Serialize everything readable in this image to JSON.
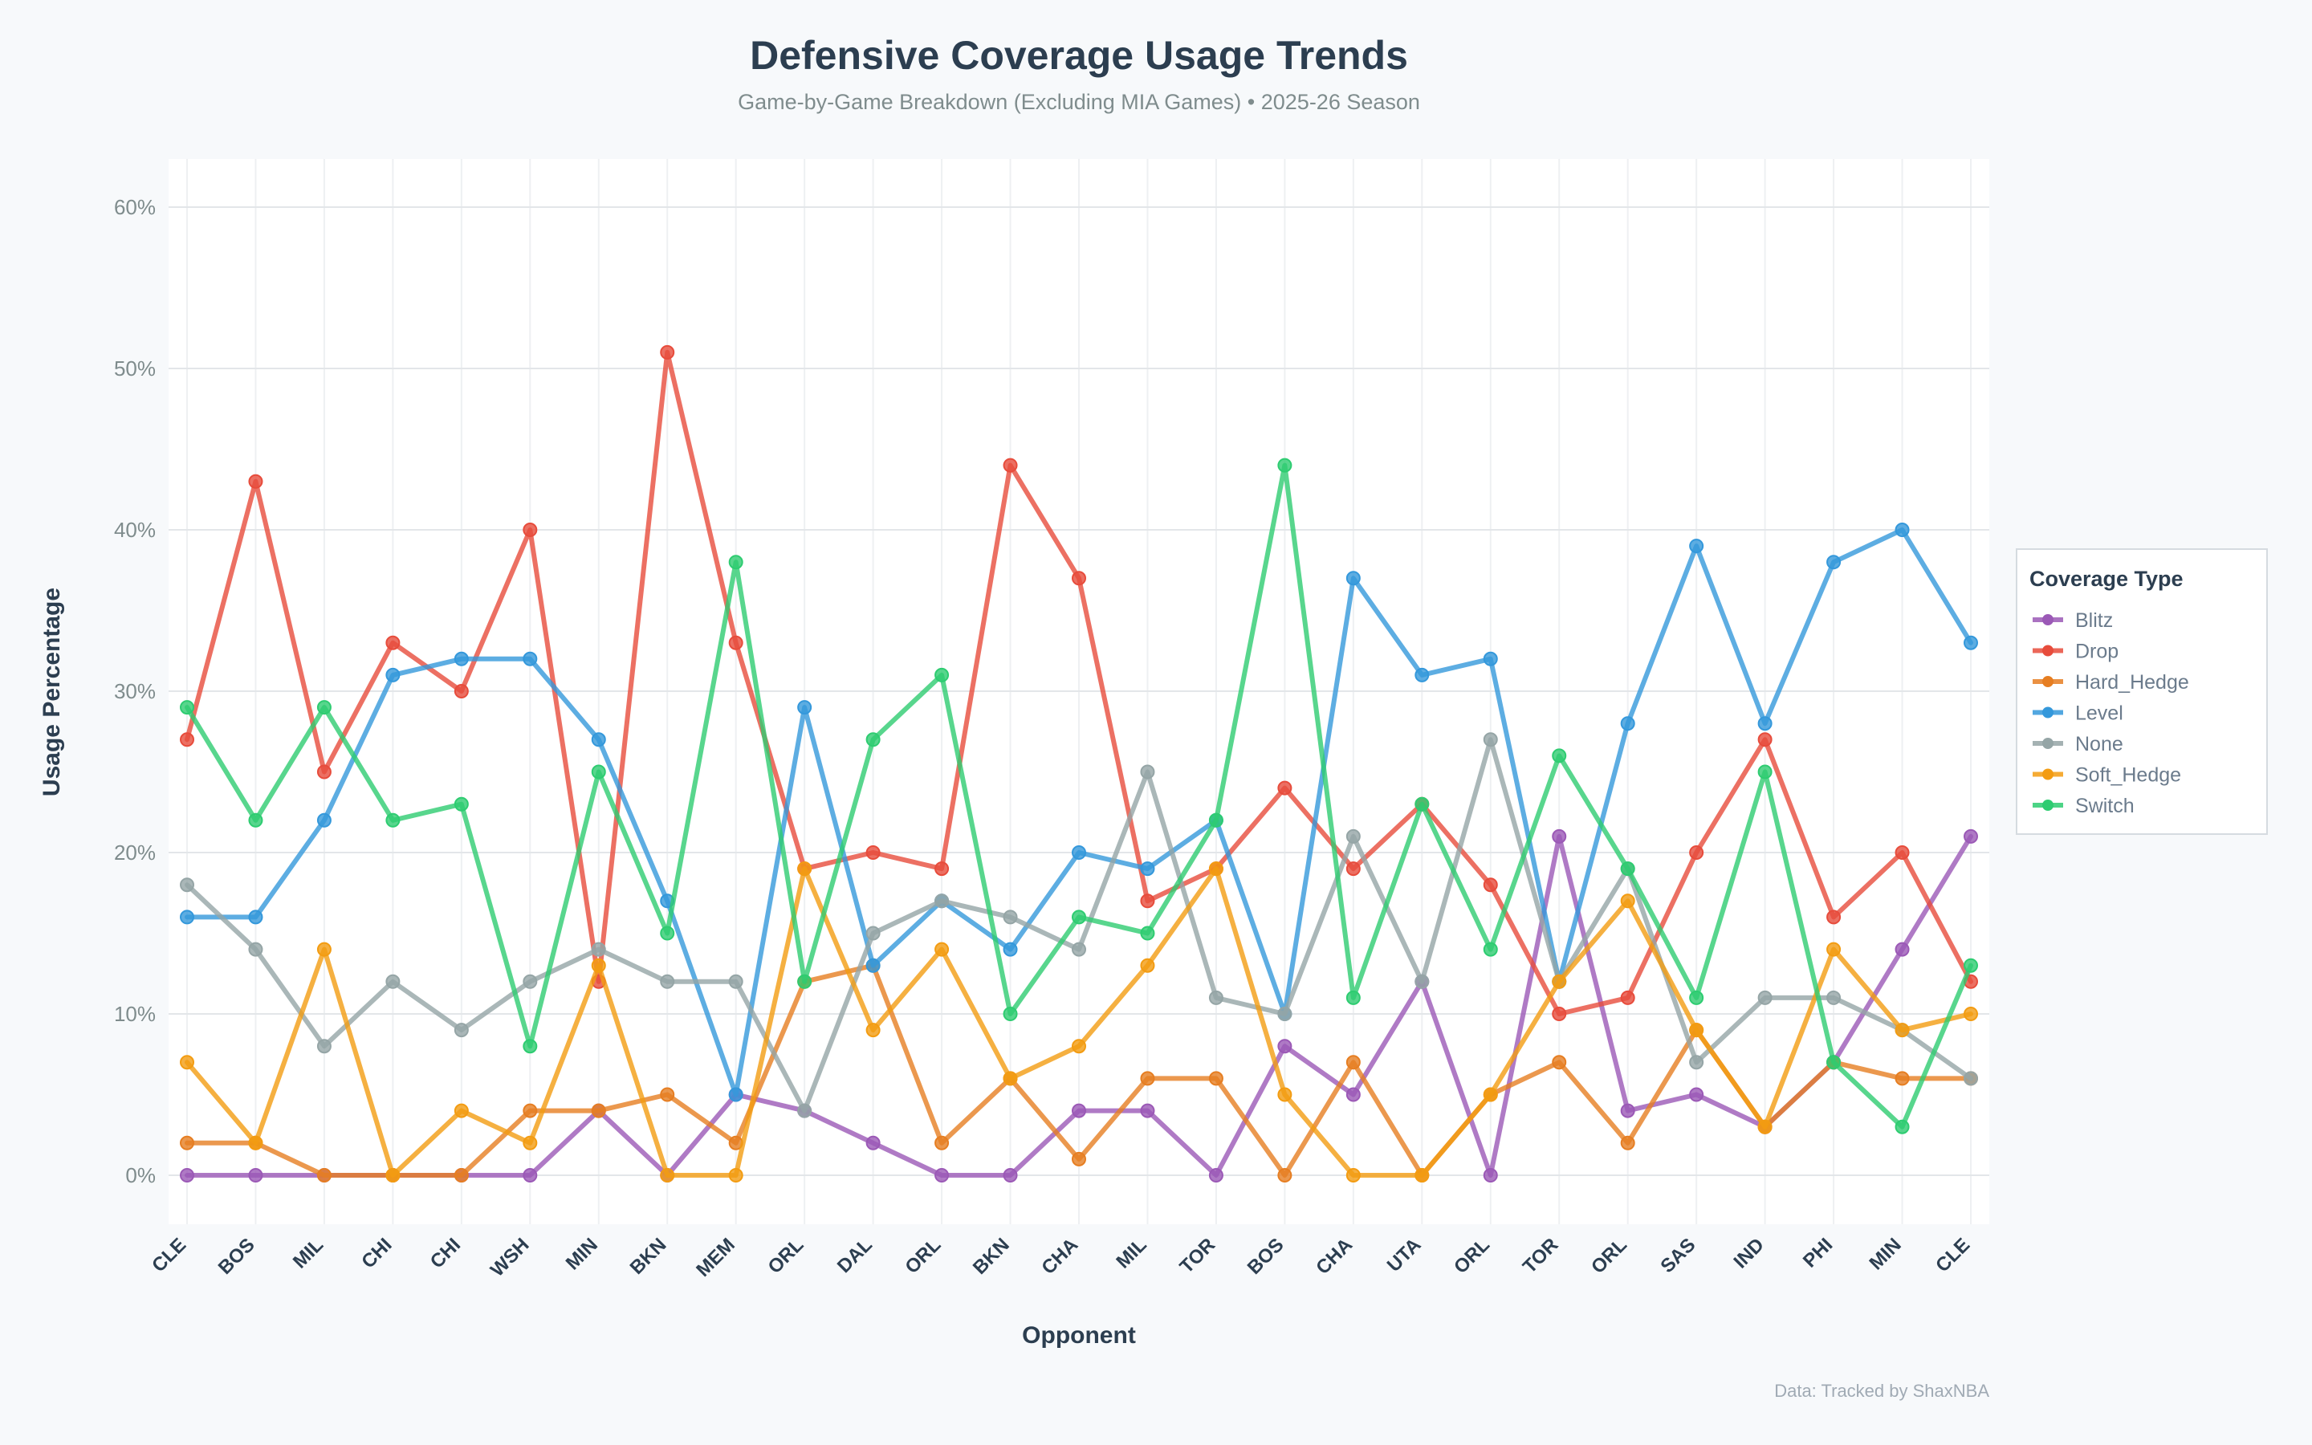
{
  "chart_data": {
    "type": "line",
    "title": "Defensive Coverage Usage Trends",
    "subtitle": "Game-by-Game Breakdown (Excluding MIA Games) • 2025-26 Season",
    "xlabel": "Opponent",
    "ylabel": "Usage Percentage",
    "ylim": [
      -3,
      63
    ],
    "yticks": [
      0,
      10,
      20,
      30,
      40,
      50,
      60
    ],
    "ytick_labels": [
      "0%",
      "10%",
      "20%",
      "30%",
      "40%",
      "50%",
      "60%"
    ],
    "grid": true,
    "legend": {
      "title": "Coverage Type",
      "placement": "right"
    },
    "footer": "Data: Tracked by ShaxNBA",
    "categories": [
      "CLE",
      "BOS",
      "MIL",
      "CHI",
      "CHI",
      "WSH",
      "MIN",
      "BKN",
      "MEM",
      "ORL",
      "DAL",
      "ORL",
      "BKN",
      "CHA",
      "MIL",
      "TOR",
      "BOS",
      "CHA",
      "UTA",
      "ORL",
      "TOR",
      "ORL",
      "SAS",
      "IND",
      "PHI",
      "MIN",
      "CLE"
    ],
    "series": [
      {
        "name": "Blitz",
        "color": "#9b59b6",
        "values": [
          0,
          0,
          0,
          0,
          0,
          0,
          4,
          0,
          5,
          4,
          2,
          0,
          0,
          4,
          4,
          0,
          8,
          5,
          12,
          0,
          21,
          4,
          5,
          3,
          7,
          14,
          21
        ]
      },
      {
        "name": "Drop",
        "color": "#e74c3c",
        "values": [
          27,
          43,
          25,
          33,
          30,
          40,
          12,
          51,
          33,
          19,
          20,
          19,
          44,
          37,
          17,
          19,
          24,
          19,
          23,
          18,
          10,
          11,
          20,
          27,
          16,
          20,
          12
        ]
      },
      {
        "name": "Hard_Hedge",
        "color": "#e67e22",
        "values": [
          2,
          2,
          0,
          0,
          0,
          4,
          4,
          5,
          2,
          12,
          13,
          2,
          6,
          1,
          6,
          6,
          0,
          7,
          0,
          5,
          7,
          2,
          9,
          3,
          7,
          6,
          6
        ]
      },
      {
        "name": "Level",
        "color": "#3498db",
        "values": [
          16,
          16,
          22,
          31,
          32,
          32,
          27,
          17,
          5,
          29,
          13,
          17,
          14,
          20,
          19,
          22,
          10,
          37,
          31,
          32,
          12,
          28,
          39,
          28,
          38,
          40,
          33
        ]
      },
      {
        "name": "None",
        "color": "#95a5a6",
        "values": [
          18,
          14,
          8,
          12,
          9,
          12,
          14,
          12,
          12,
          4,
          15,
          17,
          16,
          14,
          25,
          11,
          10,
          21,
          12,
          27,
          12,
          19,
          7,
          11,
          11,
          9,
          6
        ]
      },
      {
        "name": "Soft_Hedge",
        "color": "#f39c12",
        "values": [
          7,
          2,
          14,
          0,
          4,
          2,
          13,
          0,
          0,
          19,
          9,
          14,
          6,
          8,
          13,
          19,
          5,
          0,
          0,
          5,
          12,
          17,
          9,
          3,
          14,
          9,
          10
        ]
      },
      {
        "name": "Switch",
        "color": "#2ecc71",
        "values": [
          29,
          22,
          29,
          22,
          23,
          8,
          25,
          15,
          38,
          12,
          27,
          31,
          10,
          16,
          15,
          22,
          44,
          11,
          23,
          14,
          26,
          19,
          11,
          25,
          7,
          3,
          13
        ]
      }
    ]
  }
}
